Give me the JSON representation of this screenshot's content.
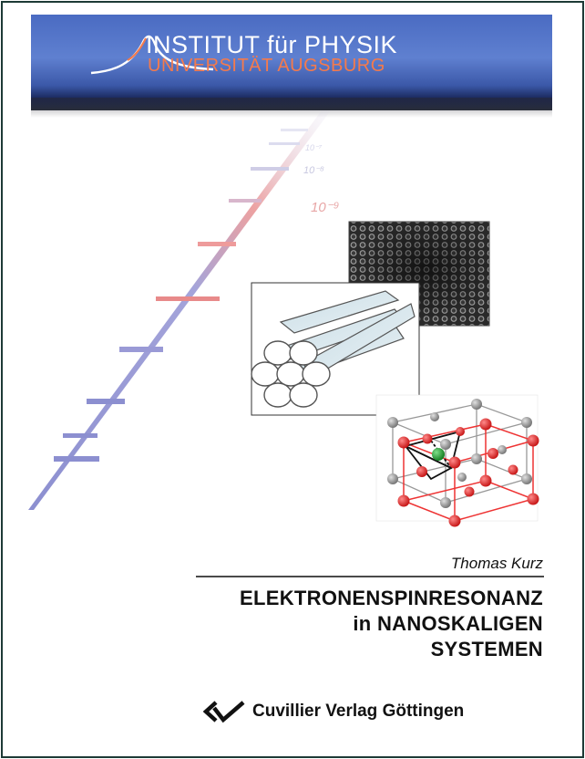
{
  "banner": {
    "institute_title": "INSTITUT für PHYSIK",
    "university": "UNIVERSITÄT AUGSBURG"
  },
  "scale_labels": [
    "10⁻⁷",
    "10⁻⁸",
    "10⁻⁹"
  ],
  "book": {
    "author": "Thomas Kurz",
    "title_lines": [
      "ELEKTRONENSPINRESONANZ",
      "in NANOSKALIGEN",
      "SYSTEMEN"
    ]
  },
  "publisher": {
    "name": "Cuvillier Verlag Göttingen",
    "logo_icon": "cuvillier-logo-icon"
  },
  "colors": {
    "banner_blue": "#4a6bc2",
    "banner_orange": "#f47a4c",
    "scale_blue": "#8c8fd0",
    "scale_red": "#e84a4a",
    "border": "#1d3a36"
  }
}
